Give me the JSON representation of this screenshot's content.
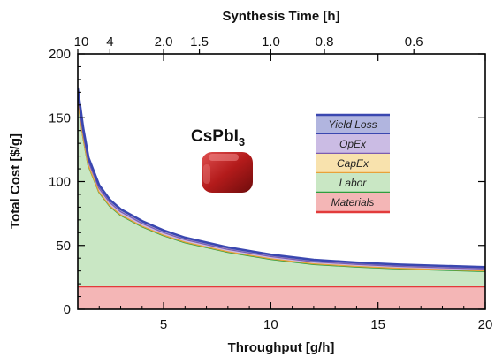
{
  "chart_data": {
    "type": "area",
    "title": "",
    "xlabel": "Throughput [g/h]",
    "ylabel": "Total Cost [$/g]",
    "top_xlabel": "Synthesis Time [h]",
    "xlim": [
      1,
      20
    ],
    "ylim": [
      0,
      200
    ],
    "x_ticks": [
      5,
      10,
      15,
      20
    ],
    "y_ticks": [
      0,
      50,
      100,
      150,
      200
    ],
    "top_ticks": [
      {
        "label": "10",
        "throughput": 1.0
      },
      {
        "label": "4",
        "throughput": 2.5
      },
      {
        "label": "2.0",
        "throughput": 5.0
      },
      {
        "label": "1.5",
        "throughput": 6.67
      },
      {
        "label": "1.0",
        "throughput": 10.0
      },
      {
        "label": "0.8",
        "throughput": 12.5
      },
      {
        "label": "0.6",
        "throughput": 16.67
      }
    ],
    "annotation": {
      "text": "CsPbI",
      "subscript": "3"
    },
    "legend_position": "upper-right",
    "x": [
      1.0,
      1.25,
      1.5,
      2,
      2.5,
      3,
      4,
      5,
      6,
      8,
      10,
      12,
      14,
      16,
      18,
      20
    ],
    "series": [
      {
        "name": "Materials",
        "color": "#f4b6b6",
        "line": "#e23b3b",
        "values": [
          18,
          18,
          18,
          18,
          18,
          18,
          18,
          18,
          18,
          18,
          18,
          18,
          18,
          18,
          18,
          18
        ]
      },
      {
        "name": "Labor",
        "color": "#c9e7c4",
        "line": "#2f9e3f",
        "values": [
          148,
          118,
          95,
          74,
          63,
          56,
          47,
          40,
          34.5,
          27,
          21.5,
          17.5,
          15.5,
          14,
          13,
          12
        ]
      },
      {
        "name": "CapEx",
        "color": "#f8e2ad",
        "line": "#e8a23a",
        "values": [
          0.5,
          0.5,
          0.5,
          0.5,
          0.5,
          0.5,
          0.5,
          0.5,
          0.5,
          0.5,
          0.5,
          0.5,
          0.5,
          0.5,
          0.5,
          0.5
        ]
      },
      {
        "name": "OpEx",
        "color": "#cbbce4",
        "line": "#7c5cb0",
        "values": [
          4,
          3.5,
          3.2,
          2.8,
          2.6,
          2.4,
          2.2,
          2.0,
          1.9,
          1.8,
          1.7,
          1.6,
          1.6,
          1.5,
          1.5,
          1.5
        ]
      },
      {
        "name": "Yield Loss",
        "color": "#b1b5df",
        "line": "#3a47b0",
        "values": [
          2.5,
          2.2,
          2.0,
          1.8,
          1.6,
          1.5,
          1.4,
          1.3,
          1.2,
          1.2,
          1.1,
          1.1,
          1.0,
          1.0,
          1.0,
          1.0
        ]
      }
    ]
  }
}
